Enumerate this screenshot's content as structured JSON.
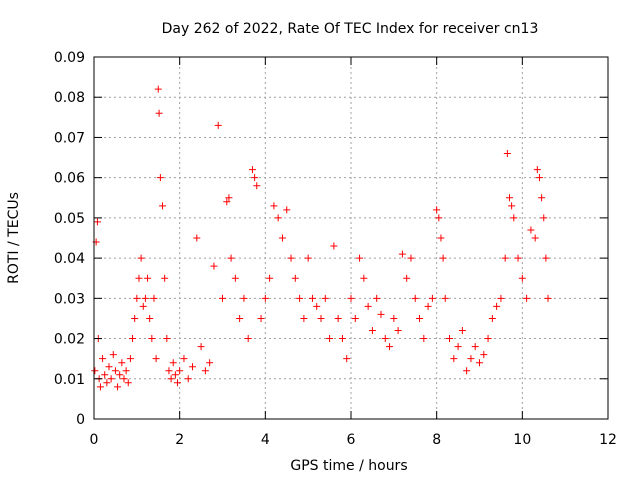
{
  "chart_data": {
    "type": "scatter",
    "title": "Day 262 of 2022, Rate Of TEC Index for receiver cn13",
    "xlabel": "GPS time / hours",
    "ylabel": "ROTI / TECUs",
    "xlim": [
      0,
      12
    ],
    "ylim": [
      0,
      0.09
    ],
    "xticks": [
      0,
      2,
      4,
      6,
      8,
      10,
      12
    ],
    "xtick_labels": [
      "0",
      "2",
      "4",
      "6",
      "8",
      "10",
      "12"
    ],
    "yticks": [
      0,
      0.01,
      0.02,
      0.03,
      0.04,
      0.05,
      0.06,
      0.07,
      0.08,
      0.09
    ],
    "ytick_labels": [
      "0",
      "0.01",
      "0.02",
      "0.03",
      "0.04",
      "0.05",
      "0.06",
      "0.07",
      "0.08",
      "0.09"
    ],
    "grid": true,
    "marker": "+",
    "marker_color": "#ff0000",
    "series": [
      {
        "name": "ROTI",
        "x": [
          0.02,
          0.05,
          0.08,
          0.1,
          0.12,
          0.15,
          0.2,
          0.25,
          0.3,
          0.35,
          0.4,
          0.45,
          0.5,
          0.55,
          0.6,
          0.65,
          0.7,
          0.75,
          0.8,
          0.85,
          0.9,
          0.95,
          1.0,
          1.05,
          1.1,
          1.15,
          1.2,
          1.25,
          1.3,
          1.35,
          1.4,
          1.45,
          1.5,
          1.52,
          1.55,
          1.6,
          1.65,
          1.7,
          1.75,
          1.8,
          1.85,
          1.9,
          1.95,
          2.0,
          2.1,
          2.2,
          2.3,
          2.4,
          2.5,
          2.6,
          2.7,
          2.8,
          2.9,
          3.0,
          3.1,
          3.15,
          3.2,
          3.3,
          3.4,
          3.5,
          3.6,
          3.7,
          3.75,
          3.8,
          3.9,
          4.0,
          4.1,
          4.2,
          4.3,
          4.4,
          4.5,
          4.6,
          4.7,
          4.8,
          4.9,
          5.0,
          5.1,
          5.2,
          5.3,
          5.4,
          5.5,
          5.6,
          5.7,
          5.8,
          5.9,
          6.0,
          6.1,
          6.2,
          6.3,
          6.4,
          6.5,
          6.6,
          6.7,
          6.8,
          6.9,
          7.0,
          7.1,
          7.2,
          7.3,
          7.4,
          7.5,
          7.6,
          7.7,
          7.8,
          7.9,
          8.0,
          8.05,
          8.1,
          8.15,
          8.2,
          8.3,
          8.4,
          8.5,
          8.6,
          8.7,
          8.8,
          8.9,
          9.0,
          9.1,
          9.2,
          9.3,
          9.4,
          9.5,
          9.6,
          9.65,
          9.7,
          9.75,
          9.8,
          9.9,
          10.0,
          10.1,
          10.2,
          10.3,
          10.35,
          10.4,
          10.45,
          10.5,
          10.55,
          10.6
        ],
        "y": [
          0.012,
          0.044,
          0.049,
          0.02,
          0.01,
          0.008,
          0.015,
          0.011,
          0.009,
          0.013,
          0.01,
          0.016,
          0.012,
          0.008,
          0.011,
          0.014,
          0.01,
          0.012,
          0.009,
          0.015,
          0.02,
          0.025,
          0.03,
          0.035,
          0.04,
          0.028,
          0.03,
          0.035,
          0.025,
          0.02,
          0.03,
          0.015,
          0.082,
          0.076,
          0.06,
          0.053,
          0.035,
          0.02,
          0.012,
          0.01,
          0.014,
          0.011,
          0.009,
          0.012,
          0.015,
          0.01,
          0.013,
          0.045,
          0.018,
          0.012,
          0.014,
          0.038,
          0.073,
          0.03,
          0.054,
          0.055,
          0.04,
          0.035,
          0.025,
          0.03,
          0.02,
          0.062,
          0.06,
          0.058,
          0.025,
          0.03,
          0.035,
          0.053,
          0.05,
          0.045,
          0.052,
          0.04,
          0.035,
          0.03,
          0.025,
          0.04,
          0.03,
          0.028,
          0.025,
          0.03,
          0.02,
          0.043,
          0.025,
          0.02,
          0.015,
          0.03,
          0.025,
          0.04,
          0.035,
          0.028,
          0.022,
          0.03,
          0.026,
          0.02,
          0.018,
          0.025,
          0.022,
          0.041,
          0.035,
          0.04,
          0.03,
          0.025,
          0.02,
          0.028,
          0.03,
          0.052,
          0.05,
          0.045,
          0.04,
          0.03,
          0.02,
          0.015,
          0.018,
          0.022,
          0.012,
          0.015,
          0.018,
          0.014,
          0.016,
          0.02,
          0.025,
          0.028,
          0.03,
          0.04,
          0.066,
          0.055,
          0.053,
          0.05,
          0.04,
          0.035,
          0.03,
          0.047,
          0.045,
          0.062,
          0.06,
          0.055,
          0.05,
          0.04,
          0.03
        ]
      }
    ]
  }
}
